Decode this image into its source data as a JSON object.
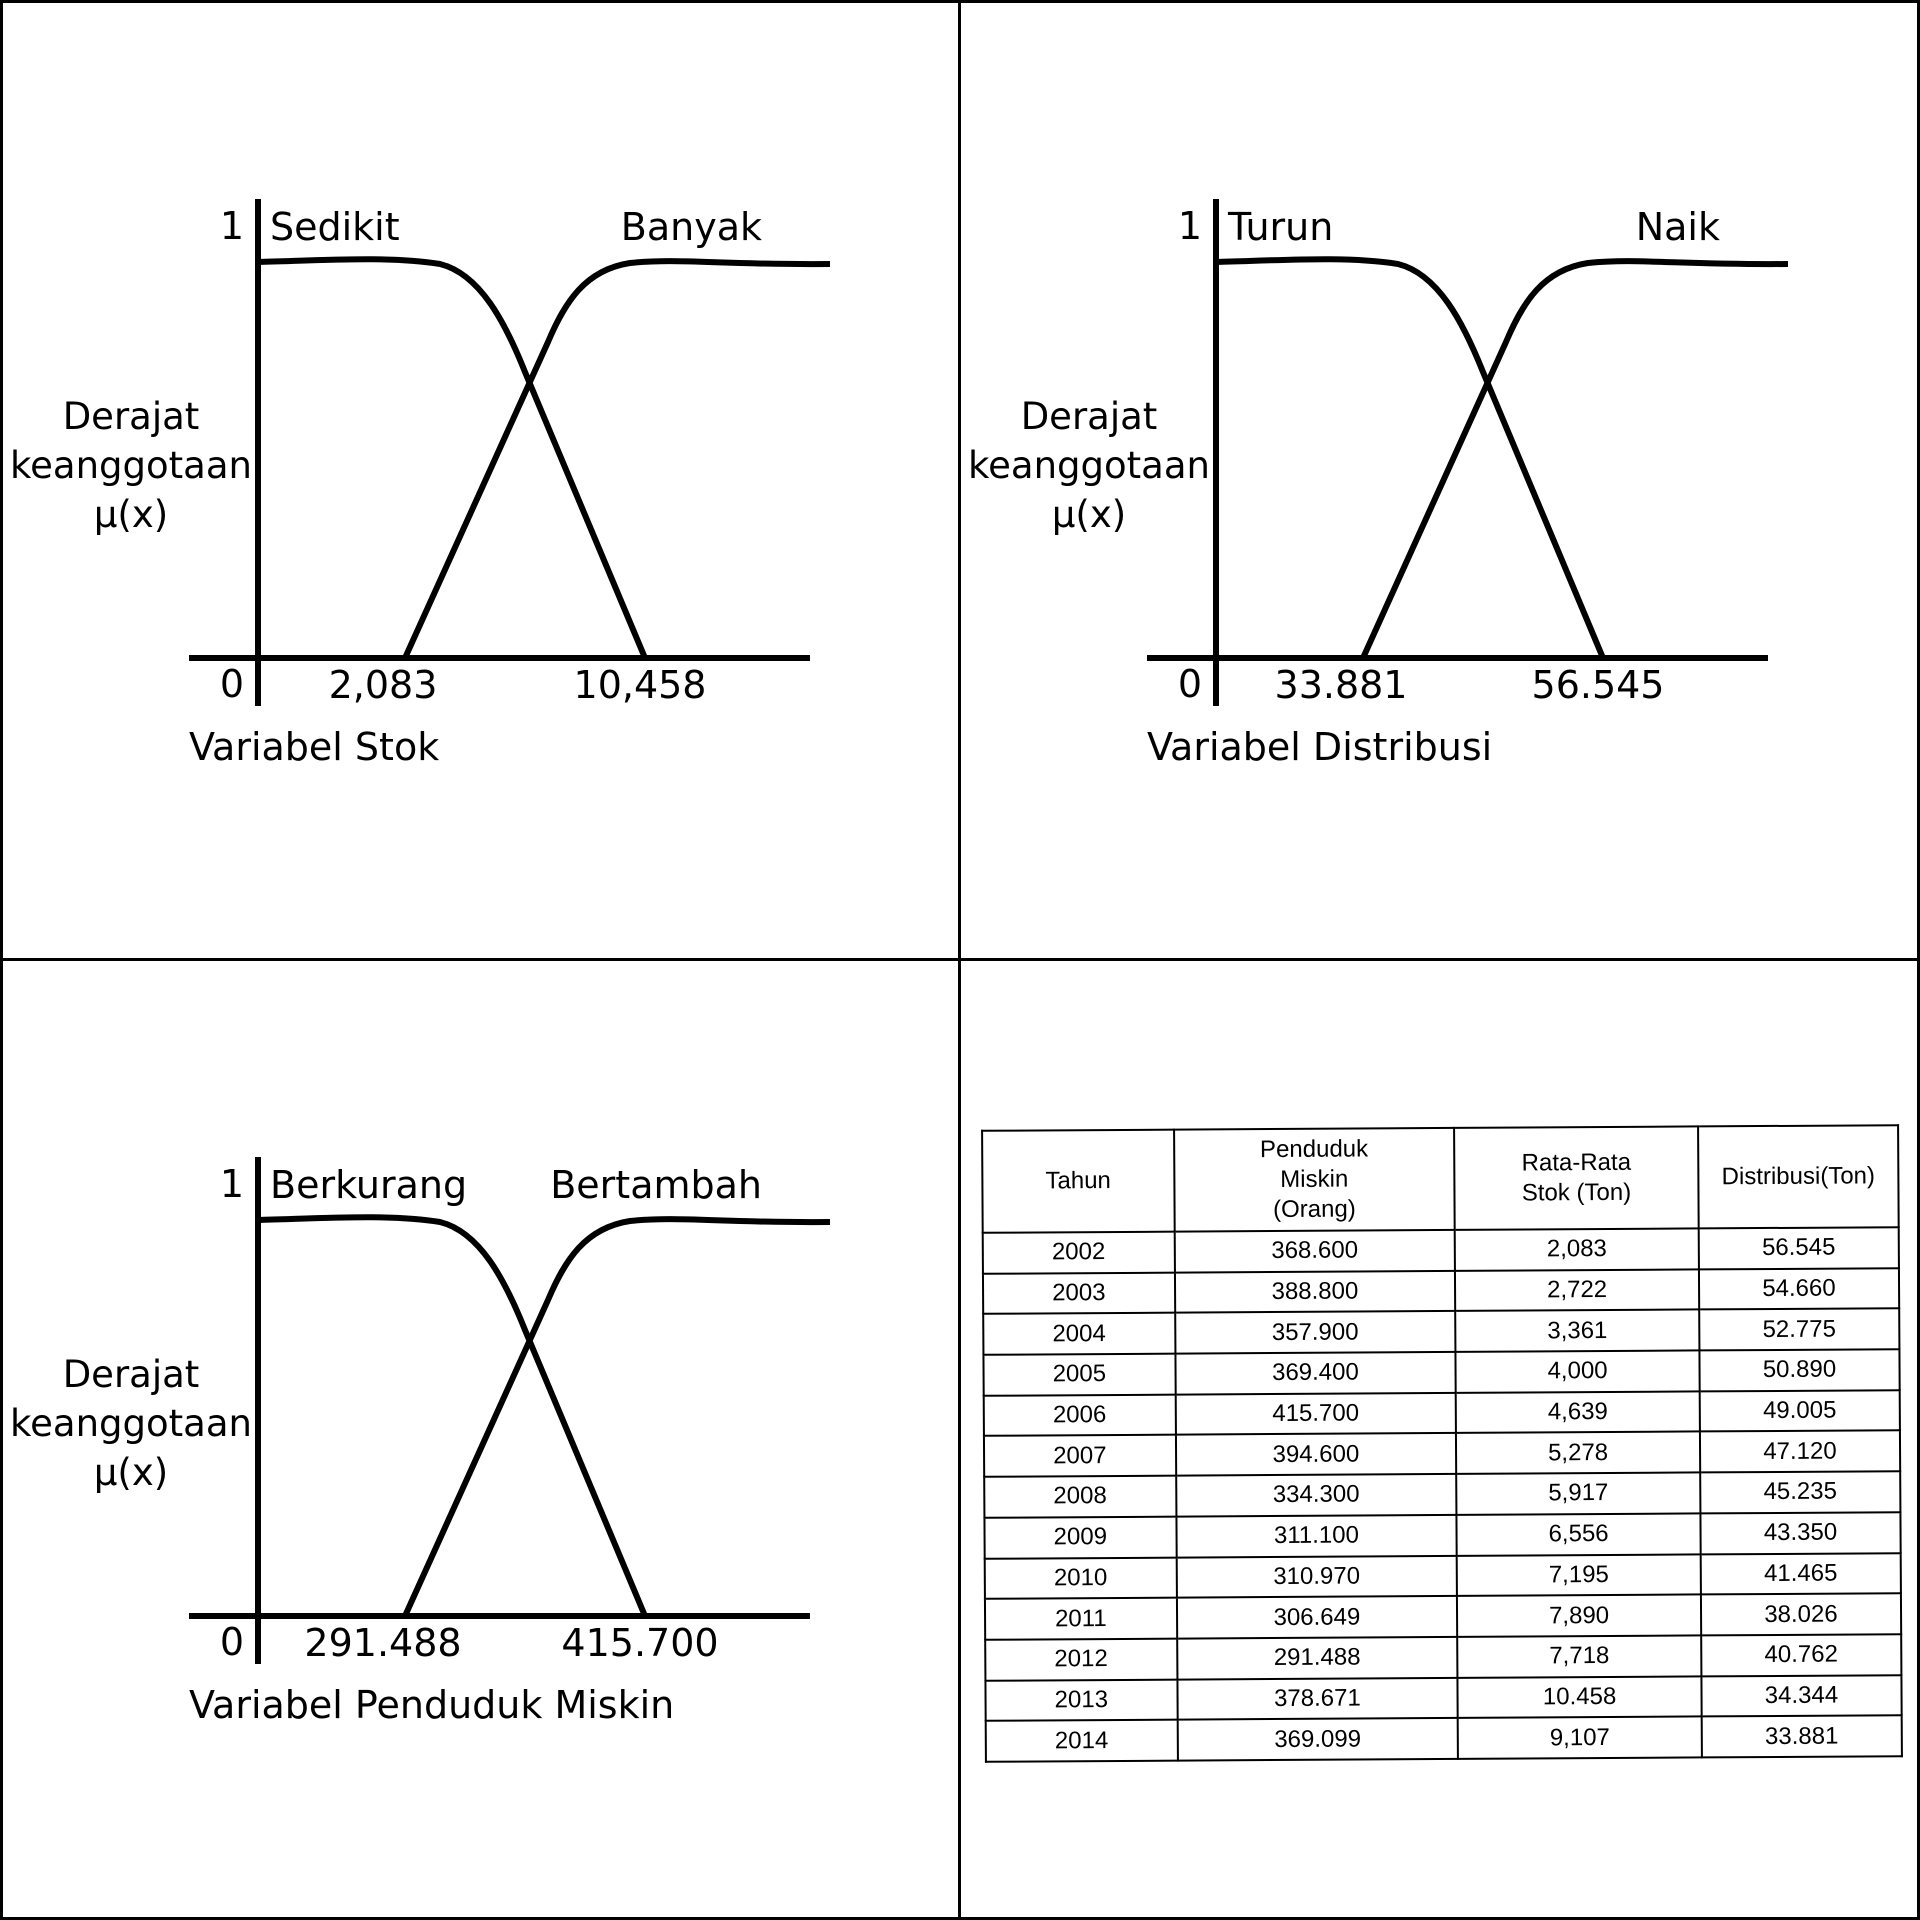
{
  "chart_data": [
    {
      "type": "line",
      "ylabel": [
        "Derajat",
        "keanggotaan",
        "μ(x)"
      ],
      "xlabel": "Variabel Stok",
      "y_ticks": [
        "0",
        "1"
      ],
      "x_ticks": [
        "2,083",
        "10,458"
      ],
      "series": [
        {
          "name": "Sedikit",
          "points": [
            [
              2.083,
              1
            ],
            [
              10.458,
              0
            ]
          ]
        },
        {
          "name": "Banyak",
          "points": [
            [
              2.083,
              0
            ],
            [
              10.458,
              1
            ]
          ]
        }
      ]
    },
    {
      "type": "line",
      "ylabel": [
        "Derajat",
        "keanggotaan",
        "μ(x)"
      ],
      "xlabel": "Variabel Distribusi",
      "y_ticks": [
        "0",
        "1"
      ],
      "x_ticks": [
        "33.881",
        "56.545"
      ],
      "series": [
        {
          "name": "Turun",
          "points": [
            [
              33.881,
              1
            ],
            [
              56.545,
              0
            ]
          ]
        },
        {
          "name": "Naik",
          "points": [
            [
              33.881,
              0
            ],
            [
              56.545,
              1
            ]
          ]
        }
      ]
    },
    {
      "type": "line",
      "ylabel": [
        "Derajat",
        "keanggotaan",
        "μ(x)"
      ],
      "xlabel": "Variabel Penduduk Miskin",
      "y_ticks": [
        "0",
        "1"
      ],
      "x_ticks": [
        "291.488",
        "415.700"
      ],
      "series": [
        {
          "name": "Berkurang",
          "points": [
            [
              291.488,
              1
            ],
            [
              415.7,
              0
            ]
          ]
        },
        {
          "name": "Bertambah",
          "points": [
            [
              291.488,
              0
            ],
            [
              415.7,
              1
            ]
          ]
        }
      ]
    },
    {
      "type": "table",
      "columns": [
        [
          "Tahun"
        ],
        [
          "Penduduk",
          "Miskin",
          "(Orang)"
        ],
        [
          "Rata-Rata",
          "Stok (Ton)"
        ],
        [
          "Distribusi(Ton)"
        ]
      ],
      "rows": [
        [
          "2002",
          "368.600",
          "2,083",
          "56.545"
        ],
        [
          "2003",
          "388.800",
          "2,722",
          "54.660"
        ],
        [
          "2004",
          "357.900",
          "3,361",
          "52.775"
        ],
        [
          "2005",
          "369.400",
          "4,000",
          "50.890"
        ],
        [
          "2006",
          "415.700",
          "4,639",
          "49.005"
        ],
        [
          "2007",
          "394.600",
          "5,278",
          "47.120"
        ],
        [
          "2008",
          "334.300",
          "5,917",
          "45.235"
        ],
        [
          "2009",
          "311.100",
          "6,556",
          "43.350"
        ],
        [
          "2010",
          "310.970",
          "7,195",
          "41.465"
        ],
        [
          "2011",
          "306.649",
          "7,890",
          "38.026"
        ],
        [
          "2012",
          "291.488",
          "7,718",
          "40.762"
        ],
        [
          "2013",
          "378.671",
          "10.458",
          "34.344"
        ],
        [
          "2014",
          "369.099",
          "9,107",
          "33.881"
        ]
      ]
    }
  ]
}
